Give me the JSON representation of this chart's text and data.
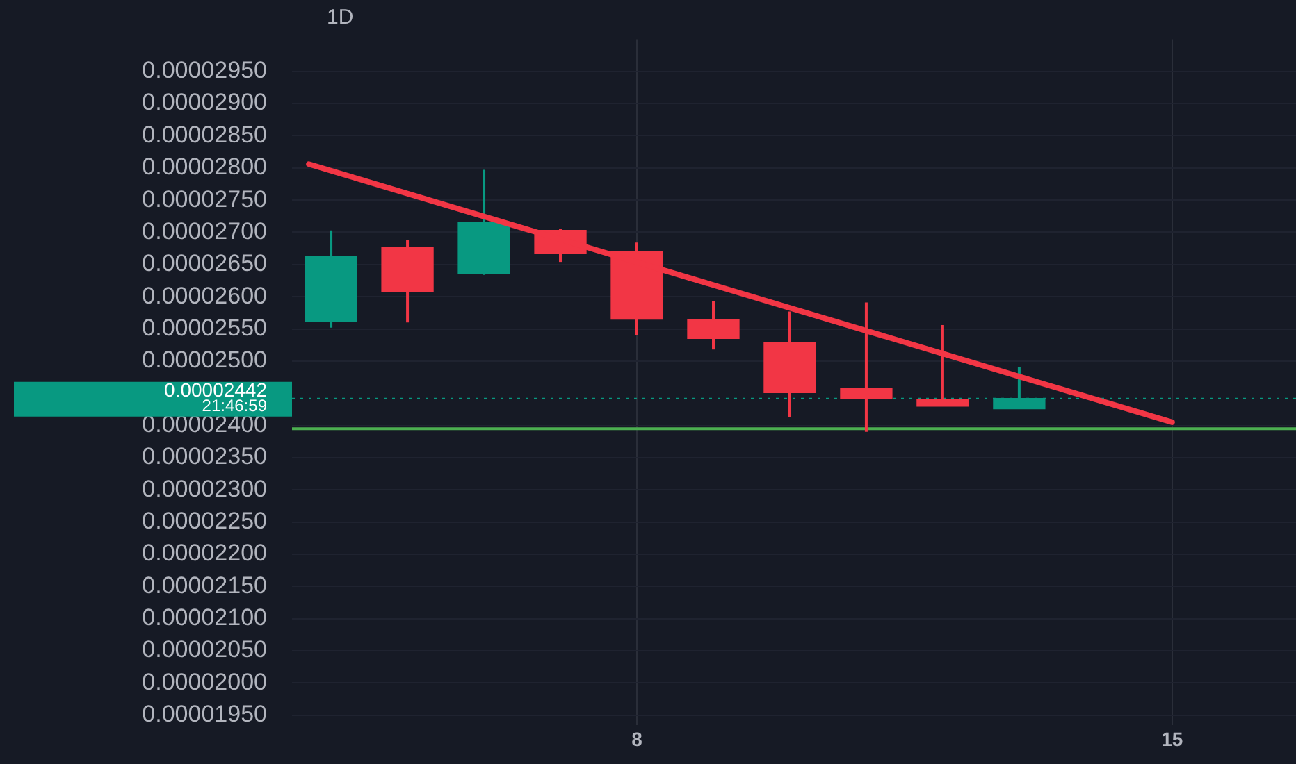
{
  "chart_data": {
    "type": "candlestick",
    "title": "1D",
    "x": [
      4,
      5,
      6,
      7,
      8,
      9,
      10,
      11,
      12,
      13
    ],
    "ohlc": [
      [
        2.562e-05,
        2.703e-05,
        2.552e-05,
        2.663e-05
      ],
      [
        2.676e-05,
        2.688e-05,
        2.56e-05,
        2.608e-05
      ],
      [
        2.636e-05,
        2.797e-05,
        2.634e-05,
        2.715e-05
      ],
      [
        2.703e-05,
        2.705e-05,
        2.654e-05,
        2.667e-05
      ],
      [
        2.67e-05,
        2.684e-05,
        2.54e-05,
        2.565e-05
      ],
      [
        2.564e-05,
        2.593e-05,
        2.518e-05,
        2.535e-05
      ],
      [
        2.529e-05,
        2.577e-05,
        2.413e-05,
        2.451e-05
      ],
      [
        2.458e-05,
        2.591e-05,
        2.39e-05,
        2.442e-05
      ],
      [
        2.44e-05,
        2.556e-05,
        2.43e-05,
        2.43e-05
      ],
      [
        2.426e-05,
        2.491e-05,
        2.426e-05,
        2.442e-05
      ]
    ],
    "colors": [
      "#089981",
      "#f23645",
      "#089981",
      "#f23645",
      "#f23645",
      "#f23645",
      "#f23645",
      "#f23645",
      "#f23645",
      "#089981"
    ],
    "series": [
      {
        "type": "line",
        "color": "#f23645",
        "x": [
          3.71,
          15
        ],
        "values": [
          2.806e-05,
          2.405e-05
        ]
      }
    ],
    "xlim": [
      3.49,
      16.62
    ],
    "xticks": [
      8,
      15
    ],
    "ylim": [
      1.935e-05,
      3e-05
    ],
    "yticks": [
      {
        "value": 1.95e-05,
        "label": "0.00001950"
      },
      {
        "value": 2e-05,
        "label": "0.00002000"
      },
      {
        "value": 2.05e-05,
        "label": "0.00002050"
      },
      {
        "value": 2.1e-05,
        "label": "0.00002100"
      },
      {
        "value": 2.15e-05,
        "label": "0.00002150"
      },
      {
        "value": 2.2e-05,
        "label": "0.00002200"
      },
      {
        "value": 2.25e-05,
        "label": "0.00002250"
      },
      {
        "value": 2.3e-05,
        "label": "0.00002300"
      },
      {
        "value": 2.35e-05,
        "label": "0.00002350"
      },
      {
        "value": 2.4e-05,
        "label": "0.00002400"
      },
      {
        "value": 2.5e-05,
        "label": "0.00002500"
      },
      {
        "value": 2.55e-05,
        "label": "0.00002550"
      },
      {
        "value": 2.6e-05,
        "label": "0.00002600"
      },
      {
        "value": 2.65e-05,
        "label": "0.00002650"
      },
      {
        "value": 2.7e-05,
        "label": "0.00002700"
      },
      {
        "value": 2.75e-05,
        "label": "0.00002750"
      },
      {
        "value": 2.8e-05,
        "label": "0.00002800"
      },
      {
        "value": 2.85e-05,
        "label": "0.00002850"
      },
      {
        "value": 2.9e-05,
        "label": "0.00002900"
      },
      {
        "value": 2.95e-05,
        "label": "0.00002950"
      }
    ],
    "ref_lines": [
      {
        "axis": "y",
        "value": 2.442e-05,
        "label": "0.00002442",
        "color": "#089981",
        "line_style": "dotted"
      },
      {
        "axis": "y",
        "value": 2.395e-05,
        "color": "#4caf50",
        "line_style": "solid"
      }
    ],
    "annotations": [
      "21:46:59"
    ],
    "grid": true,
    "legend": false
  }
}
